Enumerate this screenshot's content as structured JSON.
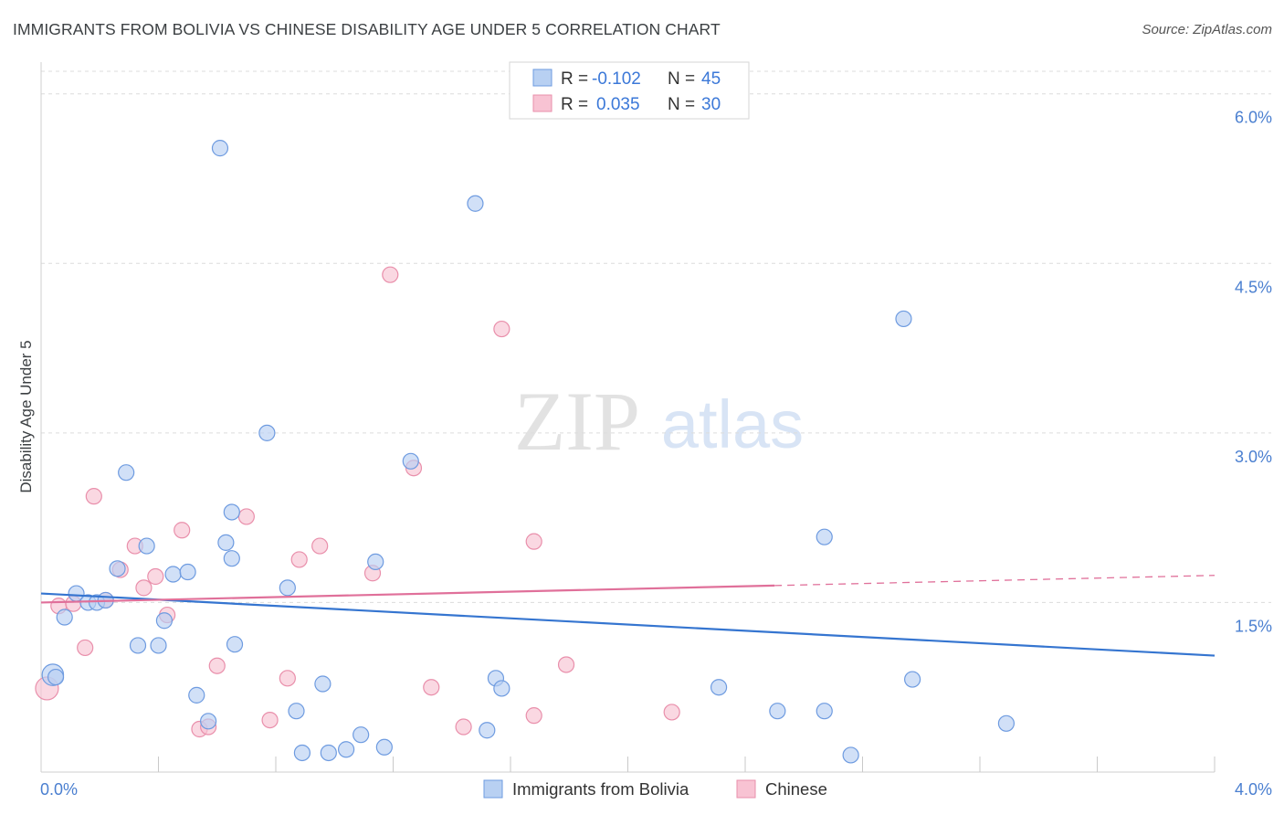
{
  "title": "IMMIGRANTS FROM BOLIVIA VS CHINESE DISABILITY AGE UNDER 5 CORRELATION CHART",
  "source": "Source: ZipAtlas.com",
  "watermark": {
    "zip": "ZIP",
    "atlas": "atlas"
  },
  "colors": {
    "bolivia_fill": "#b8d0f2",
    "bolivia_stroke": "#6e9be0",
    "bolivia_line": "#3575d0",
    "chinese_fill": "#f8c3d3",
    "chinese_stroke": "#e98fab",
    "chinese_line": "#e0709a",
    "tick_text": "#4a7fd0",
    "grid": "#dcdcdc"
  },
  "legend": {
    "rows": [
      {
        "series": "bolivia",
        "r_label": "R =",
        "r_value": "-0.102",
        "n_label": "N =",
        "n_value": "45"
      },
      {
        "series": "chinese",
        "r_label": "R =",
        "r_value": "0.035",
        "n_label": "N =",
        "n_value": "30"
      }
    ]
  },
  "chart_data": {
    "type": "scatter",
    "title": "IMMIGRANTS FROM BOLIVIA VS CHINESE DISABILITY AGE UNDER 5 CORRELATION CHART",
    "xlabel": "",
    "ylabel": "Disability Age Under 5",
    "xlim": [
      0,
      4.0
    ],
    "ylim": [
      0,
      6.2
    ],
    "x_tick_labels": [
      "0.0%",
      "4.0%"
    ],
    "y_ticks": [
      1.5,
      3.0,
      4.5,
      6.0
    ],
    "y_tick_labels": [
      "1.5%",
      "3.0%",
      "4.5%",
      "6.0%"
    ],
    "x_minor_ticks": [
      0.4,
      0.8,
      1.2,
      1.6,
      2.0,
      2.4,
      2.8,
      3.2,
      3.6,
      4.0
    ],
    "grid": true,
    "legend_position": "top-center",
    "series": [
      {
        "name": "Immigrants from Bolivia",
        "key": "bolivia",
        "trend": {
          "x": [
            0,
            4.0
          ],
          "y": [
            1.58,
            1.03
          ],
          "dashed_from": null
        },
        "points": [
          [
            0.04,
            0.86,
            14
          ],
          [
            0.05,
            0.84,
            10
          ],
          [
            0.12,
            1.58,
            10
          ],
          [
            0.16,
            1.5,
            10
          ],
          [
            0.08,
            1.37,
            10
          ],
          [
            0.19,
            1.5,
            10
          ],
          [
            0.22,
            1.52,
            10
          ],
          [
            0.26,
            1.8,
            10
          ],
          [
            0.29,
            2.65,
            10
          ],
          [
            0.33,
            1.12,
            10
          ],
          [
            0.36,
            2.0,
            10
          ],
          [
            0.4,
            1.12,
            10
          ],
          [
            0.42,
            1.34,
            10
          ],
          [
            0.45,
            1.75,
            10
          ],
          [
            0.5,
            1.77,
            10
          ],
          [
            0.53,
            0.68,
            10
          ],
          [
            0.57,
            0.45,
            10
          ],
          [
            0.61,
            5.52,
            10
          ],
          [
            0.63,
            2.03,
            10
          ],
          [
            0.65,
            1.89,
            10
          ],
          [
            0.65,
            2.3,
            10
          ],
          [
            0.66,
            1.13,
            10
          ],
          [
            0.77,
            3.0,
            10
          ],
          [
            0.84,
            1.63,
            10
          ],
          [
            0.87,
            0.54,
            10
          ],
          [
            0.89,
            0.17,
            10
          ],
          [
            0.96,
            0.78,
            10
          ],
          [
            0.98,
            0.17,
            10
          ],
          [
            1.04,
            0.2,
            10
          ],
          [
            1.09,
            0.33,
            10
          ],
          [
            1.14,
            1.86,
            10
          ],
          [
            1.17,
            0.22,
            10
          ],
          [
            1.26,
            2.75,
            10
          ],
          [
            1.48,
            5.03,
            10
          ],
          [
            1.52,
            0.37,
            10
          ],
          [
            1.55,
            0.83,
            10
          ],
          [
            1.57,
            0.74,
            10
          ],
          [
            2.31,
            0.75,
            10
          ],
          [
            2.51,
            0.54,
            10
          ],
          [
            2.67,
            2.08,
            10
          ],
          [
            2.67,
            0.54,
            10
          ],
          [
            2.76,
            0.15,
            10
          ],
          [
            2.94,
            4.01,
            10
          ],
          [
            2.97,
            0.82,
            10
          ],
          [
            3.29,
            0.43,
            10
          ]
        ]
      },
      {
        "name": "Chinese",
        "key": "chinese",
        "trend": {
          "x": [
            0,
            4.0
          ],
          "y": [
            1.5,
            1.74
          ],
          "dashed_from": 2.5
        },
        "points": [
          [
            0.02,
            0.74,
            15
          ],
          [
            0.06,
            1.47,
            10
          ],
          [
            0.11,
            1.49,
            10
          ],
          [
            0.15,
            1.1,
            10
          ],
          [
            0.18,
            2.44,
            10
          ],
          [
            0.22,
            1.52,
            10
          ],
          [
            0.27,
            1.79,
            10
          ],
          [
            0.32,
            2.0,
            10
          ],
          [
            0.35,
            1.63,
            10
          ],
          [
            0.39,
            1.73,
            10
          ],
          [
            0.43,
            1.39,
            10
          ],
          [
            0.48,
            2.14,
            10
          ],
          [
            0.54,
            0.38,
            10
          ],
          [
            0.57,
            0.4,
            10
          ],
          [
            0.6,
            0.94,
            10
          ],
          [
            0.7,
            2.26,
            10
          ],
          [
            0.78,
            0.46,
            10
          ],
          [
            0.84,
            0.83,
            10
          ],
          [
            0.88,
            1.88,
            10
          ],
          [
            0.95,
            2.0,
            10
          ],
          [
            1.13,
            1.76,
            10
          ],
          [
            1.19,
            4.4,
            10
          ],
          [
            1.27,
            2.69,
            10
          ],
          [
            1.33,
            0.75,
            10
          ],
          [
            1.44,
            0.4,
            10
          ],
          [
            1.57,
            3.92,
            10
          ],
          [
            1.68,
            2.04,
            10
          ],
          [
            1.68,
            0.5,
            10
          ],
          [
            1.79,
            0.95,
            10
          ],
          [
            2.15,
            0.53,
            10
          ]
        ]
      }
    ]
  },
  "bottom_legend": [
    {
      "series": "bolivia",
      "label": "Immigrants from Bolivia"
    },
    {
      "series": "chinese",
      "label": "Chinese"
    }
  ]
}
